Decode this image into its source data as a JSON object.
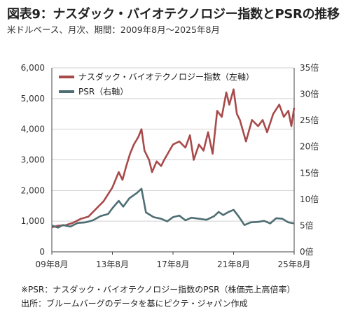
{
  "title": "図表9：ナスダック・バイオテクノロジー指数とPSRの推移",
  "subtitle": "米ドルベース、月次、期間：2009年8月～2025年8月",
  "notes": {
    "psr_note": "※PSR：ナスダック・バイオテクノロジー指数のPSR（株価売上高倍率）",
    "source": "出所：ブルームバーグのデータを基にピクテ・ジャパン作成"
  },
  "chart_data": {
    "type": "line",
    "x_tick_labels": [
      "09年8月",
      "13年8月",
      "17年8月",
      "21年8月",
      "25年8月"
    ],
    "x_tick_years": [
      2009.583,
      2013.583,
      2017.583,
      2021.583,
      2025.583
    ],
    "xlim": [
      2009.583,
      2025.583
    ],
    "y_left": {
      "ticks": [
        "0",
        "1,000",
        "2,000",
        "3,000",
        "4,000",
        "5,000",
        "6,000"
      ],
      "lim": [
        0,
        6000
      ]
    },
    "y_right": {
      "ticks": [
        "0倍",
        "5倍",
        "10倍",
        "15倍",
        "20倍",
        "25倍",
        "30倍",
        "35倍"
      ],
      "lim": [
        0,
        35
      ]
    },
    "grid": true,
    "legend_position": "top-left",
    "series": [
      {
        "name": "ナスダック・バイオテクノロジー指数（左軸）",
        "axis": "left",
        "color": "#a84a4a",
        "points": [
          [
            2009.583,
            800
          ],
          [
            2010.0,
            850
          ],
          [
            2010.5,
            870
          ],
          [
            2011.0,
            950
          ],
          [
            2011.5,
            1080
          ],
          [
            2012.0,
            1150
          ],
          [
            2012.5,
            1400
          ],
          [
            2013.0,
            1650
          ],
          [
            2013.583,
            2100
          ],
          [
            2014.0,
            2600
          ],
          [
            2014.25,
            2350
          ],
          [
            2014.5,
            2800
          ],
          [
            2014.75,
            3200
          ],
          [
            2015.0,
            3500
          ],
          [
            2015.3,
            3750
          ],
          [
            2015.5,
            4000
          ],
          [
            2015.7,
            3300
          ],
          [
            2016.0,
            3000
          ],
          [
            2016.2,
            2600
          ],
          [
            2016.5,
            2950
          ],
          [
            2016.8,
            2800
          ],
          [
            2017.0,
            3000
          ],
          [
            2017.583,
            3500
          ],
          [
            2018.0,
            3600
          ],
          [
            2018.4,
            3400
          ],
          [
            2018.7,
            3800
          ],
          [
            2018.95,
            3000
          ],
          [
            2019.3,
            3500
          ],
          [
            2019.6,
            3300
          ],
          [
            2019.9,
            3900
          ],
          [
            2020.2,
            3200
          ],
          [
            2020.5,
            4600
          ],
          [
            2020.8,
            4400
          ],
          [
            2021.1,
            5200
          ],
          [
            2021.3,
            4800
          ],
          [
            2021.583,
            5300
          ],
          [
            2021.8,
            4500
          ],
          [
            2022.0,
            4300
          ],
          [
            2022.4,
            3600
          ],
          [
            2022.8,
            4300
          ],
          [
            2023.2,
            4100
          ],
          [
            2023.5,
            4300
          ],
          [
            2023.8,
            3900
          ],
          [
            2024.2,
            4500
          ],
          [
            2024.6,
            4800
          ],
          [
            2024.9,
            4400
          ],
          [
            2025.2,
            4600
          ],
          [
            2025.4,
            4100
          ],
          [
            2025.583,
            4700
          ]
        ]
      },
      {
        "name": "PSR（右軸）",
        "axis": "right",
        "color": "#4e6e74",
        "points": [
          [
            2009.583,
            5.0
          ],
          [
            2010.0,
            4.6
          ],
          [
            2010.3,
            5.1
          ],
          [
            2010.8,
            4.8
          ],
          [
            2011.3,
            5.5
          ],
          [
            2011.8,
            5.6
          ],
          [
            2012.3,
            6.0
          ],
          [
            2012.8,
            6.8
          ],
          [
            2013.3,
            7.2
          ],
          [
            2013.583,
            8.3
          ],
          [
            2014.0,
            9.7
          ],
          [
            2014.3,
            8.6
          ],
          [
            2014.7,
            10.2
          ],
          [
            2015.2,
            11.2
          ],
          [
            2015.5,
            12.0
          ],
          [
            2015.8,
            7.5
          ],
          [
            2016.3,
            6.6
          ],
          [
            2016.8,
            6.3
          ],
          [
            2017.2,
            5.8
          ],
          [
            2017.583,
            6.6
          ],
          [
            2018.0,
            6.9
          ],
          [
            2018.4,
            6.0
          ],
          [
            2018.8,
            6.5
          ],
          [
            2019.3,
            6.3
          ],
          [
            2019.8,
            6.1
          ],
          [
            2020.3,
            6.8
          ],
          [
            2020.6,
            7.6
          ],
          [
            2020.9,
            7.0
          ],
          [
            2021.2,
            7.5
          ],
          [
            2021.583,
            8.0
          ],
          [
            2021.9,
            6.8
          ],
          [
            2022.3,
            5.1
          ],
          [
            2022.7,
            5.6
          ],
          [
            2023.2,
            5.7
          ],
          [
            2023.6,
            5.9
          ],
          [
            2024.0,
            5.4
          ],
          [
            2024.4,
            6.4
          ],
          [
            2024.8,
            6.3
          ],
          [
            2025.2,
            5.6
          ],
          [
            2025.583,
            5.4
          ]
        ]
      }
    ]
  }
}
